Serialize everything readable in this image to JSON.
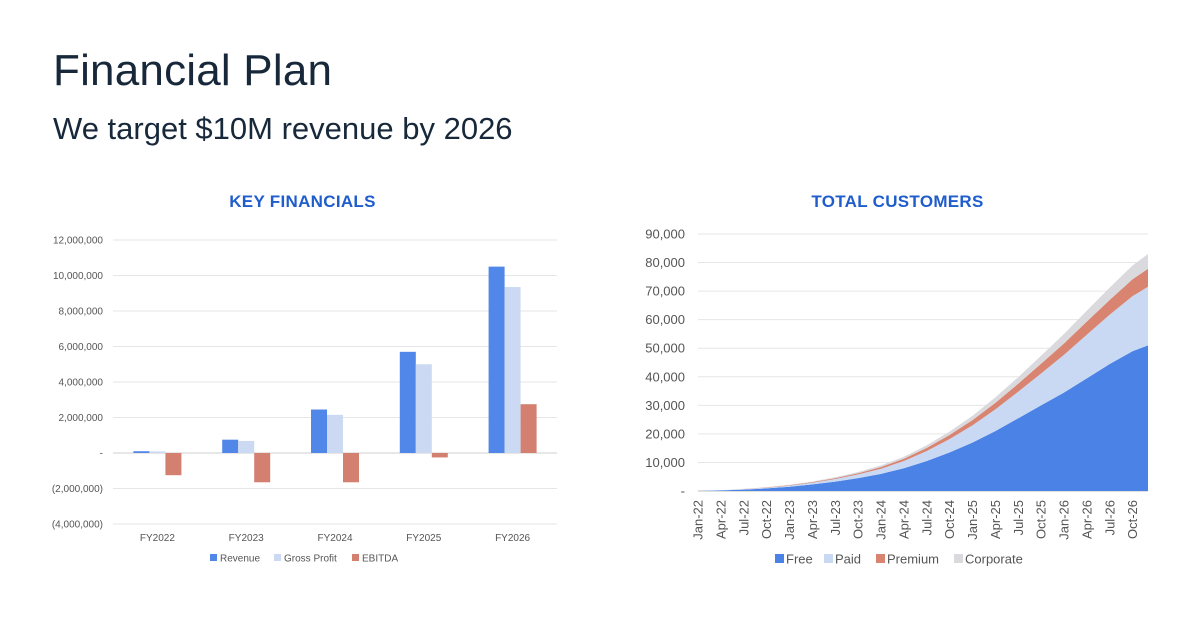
{
  "page": {
    "title": "Financial Plan",
    "subtitle": "We target $10M revenue by 2026"
  },
  "colors": {
    "revenue": "#5087e8",
    "gross_profit": "#cbdaf2",
    "ebitda": "#d48071",
    "free": "#4b82e6",
    "paid": "#c9d9f3",
    "premium": "#d88470",
    "corporate": "#d9d9de",
    "title_blue": "#1f5ccc"
  },
  "chart_data": [
    {
      "type": "bar",
      "title": "KEY FINANCIALS",
      "categories": [
        "FY2022",
        "FY2023",
        "FY2024",
        "FY2025",
        "FY2026"
      ],
      "series": [
        {
          "name": "Revenue",
          "values": [
            100000,
            750000,
            2450000,
            5700000,
            10500000
          ]
        },
        {
          "name": "Gross Profit",
          "values": [
            90000,
            680000,
            2150000,
            5000000,
            9350000
          ]
        },
        {
          "name": "EBITDA",
          "values": [
            -1250000,
            -1650000,
            -1650000,
            -250000,
            2750000
          ]
        }
      ],
      "ylim": [
        -4000000,
        12000000
      ],
      "yticks": [
        {
          "value": 12000000,
          "label": "12,000,000"
        },
        {
          "value": 10000000,
          "label": "10,000,000"
        },
        {
          "value": 8000000,
          "label": "8,000,000"
        },
        {
          "value": 6000000,
          "label": "6,000,000"
        },
        {
          "value": 4000000,
          "label": "4,000,000"
        },
        {
          "value": 2000000,
          "label": "2,000,000"
        },
        {
          "value": 0,
          "label": "-"
        },
        {
          "value": -2000000,
          "label": "(2,000,000)"
        },
        {
          "value": -4000000,
          "label": "(4,000,000)"
        }
      ],
      "grid": true,
      "legend": "bottom"
    },
    {
      "type": "area",
      "stacked": true,
      "title": "TOTAL CUSTOMERS",
      "x": [
        "2022-01",
        "2022-04",
        "2022-07",
        "2022-10",
        "2023-01",
        "2023-04",
        "2023-07",
        "2023-10",
        "2024-01",
        "2024-04",
        "2024-07",
        "2024-10",
        "2025-01",
        "2025-04",
        "2025-07",
        "2025-10",
        "2026-01",
        "2026-04",
        "2026-07",
        "2026-10",
        "2026-12"
      ],
      "xticks": [
        "Jan-22",
        "Apr-22",
        "Jul-22",
        "Oct-22",
        "Jan-23",
        "Apr-23",
        "Jul-23",
        "Oct-23",
        "Jan-24",
        "Apr-24",
        "Jul-24",
        "Oct-24",
        "Jan-25",
        "Apr-25",
        "Jul-25",
        "Oct-25",
        "Jan-26",
        "Apr-26",
        "Jul-26",
        "Oct-26"
      ],
      "series": [
        {
          "name": "Free",
          "values": [
            0,
            200,
            500,
            900,
            1500,
            2300,
            3300,
            4500,
            6000,
            8000,
            10500,
            13500,
            17000,
            21000,
            25500,
            30000,
            34500,
            39500,
            44500,
            49000,
            51000
          ]
        },
        {
          "name": "Paid",
          "values": [
            0,
            50,
            150,
            250,
            400,
            600,
            900,
            1300,
            1800,
            2500,
            3500,
            4700,
            6000,
            7600,
            9300,
            11200,
            13200,
            15300,
            17300,
            19300,
            20500
          ]
        },
        {
          "name": "Premium",
          "values": [
            0,
            20,
            60,
            100,
            150,
            220,
            320,
            450,
            600,
            800,
            1100,
            1450,
            1850,
            2300,
            2800,
            3400,
            4000,
            4600,
            5200,
            5900,
            6300
          ]
        },
        {
          "name": "Corporate",
          "values": [
            0,
            20,
            50,
            90,
            140,
            200,
            290,
            400,
            550,
            700,
            950,
            1200,
            1500,
            1900,
            2300,
            2800,
            3300,
            3800,
            4300,
            4800,
            5200
          ]
        }
      ],
      "ylim": [
        0,
        90000
      ],
      "yticks": [
        {
          "value": 0,
          "label": "-"
        },
        {
          "value": 10000,
          "label": "10,000"
        },
        {
          "value": 20000,
          "label": "20,000"
        },
        {
          "value": 30000,
          "label": "30,000"
        },
        {
          "value": 40000,
          "label": "40,000"
        },
        {
          "value": 50000,
          "label": "50,000"
        },
        {
          "value": 60000,
          "label": "60,000"
        },
        {
          "value": 70000,
          "label": "70,000"
        },
        {
          "value": 80000,
          "label": "80,000"
        },
        {
          "value": 90000,
          "label": "90,000"
        }
      ],
      "grid": true,
      "legend": "bottom"
    }
  ]
}
